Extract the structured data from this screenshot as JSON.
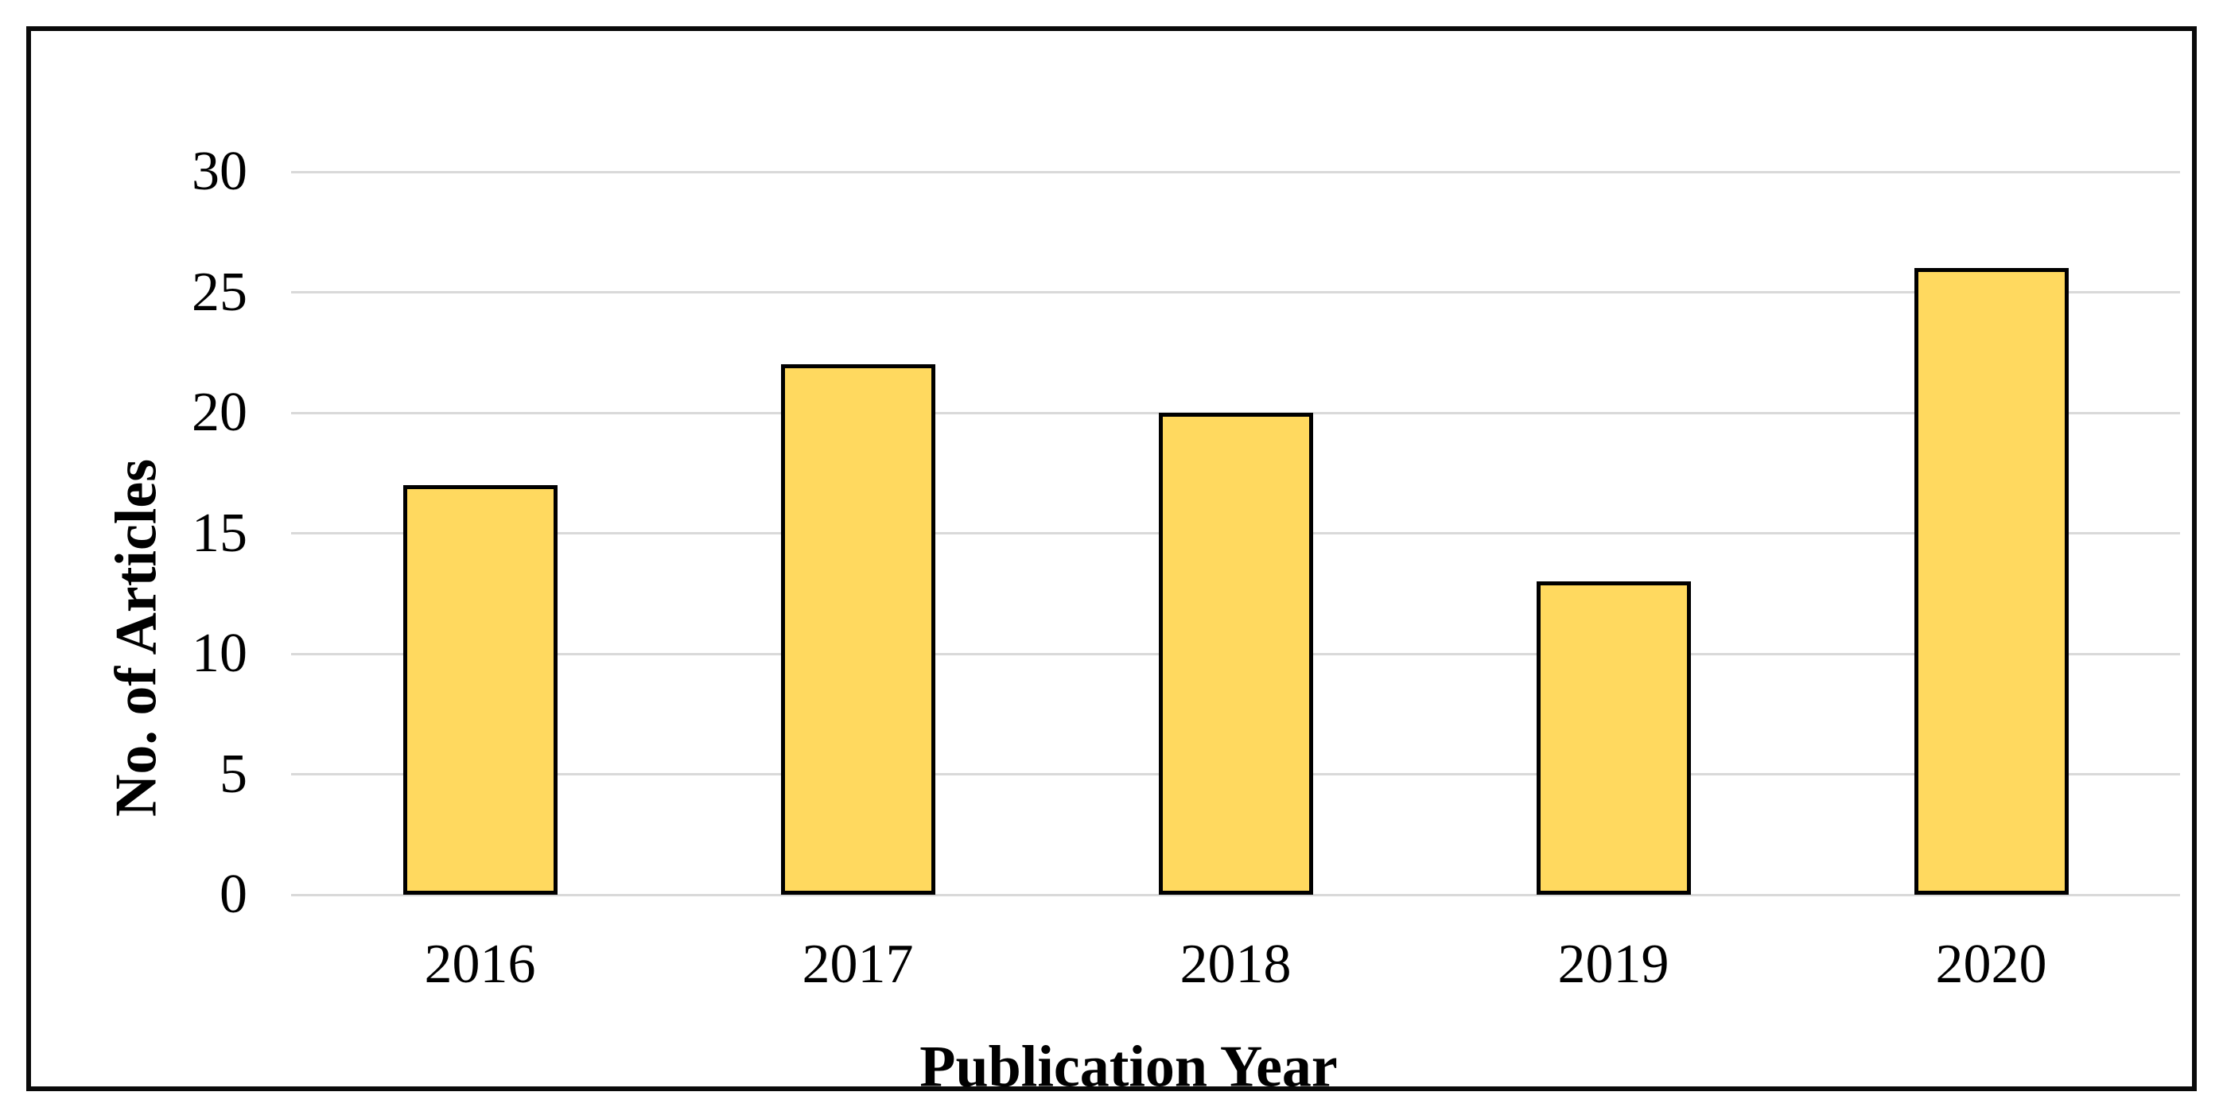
{
  "chart_data": {
    "type": "bar",
    "title": "",
    "categories": [
      "2016",
      "2017",
      "2018",
      "2019",
      "2020"
    ],
    "values": [
      17,
      22,
      20,
      13,
      26
    ],
    "xlabel": "Publication Year",
    "ylabel": "No. of Articles",
    "ylim": [
      0,
      30
    ],
    "yticks": [
      0,
      5,
      10,
      15,
      20,
      25,
      30
    ],
    "grid": true,
    "legend_position": "none",
    "bar_color": "#FFD95F",
    "bar_border_color": "#000000",
    "gridline_color": "#D9D9D9",
    "frame_color": "#0A0A0A",
    "text_color": "#000000"
  }
}
